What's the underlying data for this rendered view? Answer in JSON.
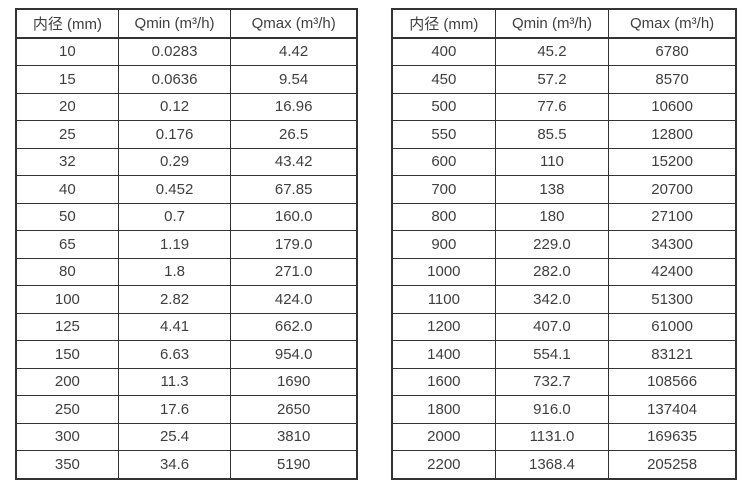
{
  "page": {
    "background": "#ffffff",
    "border_color": "#333333",
    "text_color": "#3f3f3f"
  },
  "tables": [
    {
      "name": "flow-table-small-diameters",
      "headers": [
        "内径 (mm)",
        "Qmin (m³/h)",
        "Qmax (m³/h)"
      ],
      "rows": [
        [
          "10",
          "0.0283",
          "4.42"
        ],
        [
          "15",
          "0.0636",
          "9.54"
        ],
        [
          "20",
          "0.12",
          "16.96"
        ],
        [
          "25",
          "0.176",
          "26.5"
        ],
        [
          "32",
          "0.29",
          "43.42"
        ],
        [
          "40",
          "0.452",
          "67.85"
        ],
        [
          "50",
          "0.7",
          "160.0"
        ],
        [
          "65",
          "1.19",
          "179.0"
        ],
        [
          "80",
          "1.8",
          "271.0"
        ],
        [
          "100",
          "2.82",
          "424.0"
        ],
        [
          "125",
          "4.41",
          "662.0"
        ],
        [
          "150",
          "6.63",
          "954.0"
        ],
        [
          "200",
          "11.3",
          "1690"
        ],
        [
          "250",
          "17.6",
          "2650"
        ],
        [
          "300",
          "25.4",
          "3810"
        ],
        [
          "350",
          "34.6",
          "5190"
        ]
      ]
    },
    {
      "name": "flow-table-large-diameters",
      "headers": [
        "内径 (mm)",
        "Qmin (m³/h)",
        "Qmax (m³/h)"
      ],
      "rows": [
        [
          "400",
          "45.2",
          "6780"
        ],
        [
          "450",
          "57.2",
          "8570"
        ],
        [
          "500",
          "77.6",
          "10600"
        ],
        [
          "550",
          "85.5",
          "12800"
        ],
        [
          "600",
          "110",
          "15200"
        ],
        [
          "700",
          "138",
          "20700"
        ],
        [
          "800",
          "180",
          "27100"
        ],
        [
          "900",
          "229.0",
          "34300"
        ],
        [
          "1000",
          "282.0",
          "42400"
        ],
        [
          "1100",
          "342.0",
          "51300"
        ],
        [
          "1200",
          "407.0",
          "61000"
        ],
        [
          "1400",
          "554.1",
          "83121"
        ],
        [
          "1600",
          "732.7",
          "108566"
        ],
        [
          "1800",
          "916.0",
          "137404"
        ],
        [
          "2000",
          "1131.0",
          "169635"
        ],
        [
          "2200",
          "1368.4",
          "205258"
        ]
      ]
    }
  ]
}
